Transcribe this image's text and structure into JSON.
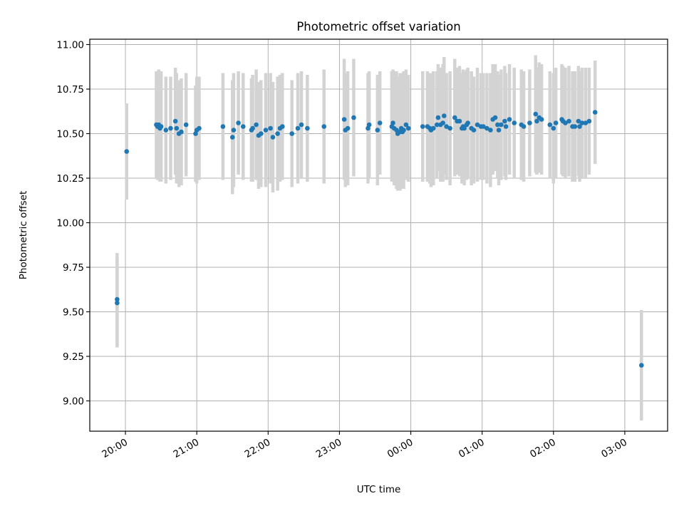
{
  "chart_data": {
    "type": "scatter",
    "title": "Photometric offset variation",
    "xlabel": "UTC time",
    "ylabel": "Photometric offset",
    "x_axis": {
      "kind": "time",
      "range": [
        "19:30",
        "03:36"
      ],
      "ticks": [
        "20:00",
        "21:00",
        "22:00",
        "23:00",
        "00:00",
        "01:00",
        "02:00",
        "03:00"
      ]
    },
    "y_axis": {
      "range": [
        8.83,
        11.03
      ],
      "ticks": [
        "9.00",
        "9.25",
        "9.50",
        "9.75",
        "10.00",
        "10.25",
        "10.50",
        "10.75",
        "11.00"
      ]
    },
    "grid": true,
    "legend": "none",
    "colors": {
      "marker": "#1f77b4",
      "errorbar": "#d3d3d3"
    },
    "series": [
      {
        "points": [
          {
            "t": "19:53",
            "y": 9.57,
            "err": 0.26
          },
          {
            "t": "19:53",
            "y": 9.55,
            "err": 0.25
          },
          {
            "t": "20:01",
            "y": 10.4,
            "err": 0.27
          },
          {
            "t": "20:26",
            "y": 10.55,
            "err": 0.3
          },
          {
            "t": "20:27",
            "y": 10.54,
            "err": 0.3
          },
          {
            "t": "20:28",
            "y": 10.55,
            "err": 0.31
          },
          {
            "t": "20:29",
            "y": 10.53,
            "err": 0.3
          },
          {
            "t": "20:30",
            "y": 10.54,
            "err": 0.31
          },
          {
            "t": "20:34",
            "y": 10.52,
            "err": 0.3
          },
          {
            "t": "20:38",
            "y": 10.53,
            "err": 0.29
          },
          {
            "t": "20:42",
            "y": 10.57,
            "err": 0.3
          },
          {
            "t": "20:43",
            "y": 10.53,
            "err": 0.31
          },
          {
            "t": "20:45",
            "y": 10.5,
            "err": 0.3
          },
          {
            "t": "20:47",
            "y": 10.51,
            "err": 0.3
          },
          {
            "t": "20:51",
            "y": 10.55,
            "err": 0.29
          },
          {
            "t": "20:59",
            "y": 10.5,
            "err": 0.27
          },
          {
            "t": "21:00",
            "y": 10.52,
            "err": 0.3
          },
          {
            "t": "21:02",
            "y": 10.53,
            "err": 0.29
          },
          {
            "t": "21:22",
            "y": 10.54,
            "err": 0.3
          },
          {
            "t": "21:30",
            "y": 10.48,
            "err": 0.32
          },
          {
            "t": "21:31",
            "y": 10.52,
            "err": 0.32
          },
          {
            "t": "21:35",
            "y": 10.56,
            "err": 0.29
          },
          {
            "t": "21:39",
            "y": 10.54,
            "err": 0.3
          },
          {
            "t": "21:46",
            "y": 10.52,
            "err": 0.29
          },
          {
            "t": "21:47",
            "y": 10.53,
            "err": 0.3
          },
          {
            "t": "21:50",
            "y": 10.55,
            "err": 0.31
          },
          {
            "t": "21:52",
            "y": 10.49,
            "err": 0.3
          },
          {
            "t": "21:54",
            "y": 10.5,
            "err": 0.3
          },
          {
            "t": "21:58",
            "y": 10.52,
            "err": 0.32
          },
          {
            "t": "22:02",
            "y": 10.53,
            "err": 0.31
          },
          {
            "t": "22:04",
            "y": 10.48,
            "err": 0.31
          },
          {
            "t": "22:08",
            "y": 10.5,
            "err": 0.32
          },
          {
            "t": "22:10",
            "y": 10.53,
            "err": 0.3
          },
          {
            "t": "22:12",
            "y": 10.54,
            "err": 0.3
          },
          {
            "t": "22:20",
            "y": 10.5,
            "err": 0.3
          },
          {
            "t": "22:25",
            "y": 10.53,
            "err": 0.31
          },
          {
            "t": "22:28",
            "y": 10.55,
            "err": 0.3
          },
          {
            "t": "22:33",
            "y": 10.53,
            "err": 0.3
          },
          {
            "t": "22:47",
            "y": 10.54,
            "err": 0.32
          },
          {
            "t": "23:04",
            "y": 10.58,
            "err": 0.34
          },
          {
            "t": "23:05",
            "y": 10.52,
            "err": 0.32
          },
          {
            "t": "23:07",
            "y": 10.53,
            "err": 0.32
          },
          {
            "t": "23:12",
            "y": 10.59,
            "err": 0.33
          },
          {
            "t": "23:24",
            "y": 10.53,
            "err": 0.31
          },
          {
            "t": "23:25",
            "y": 10.55,
            "err": 0.3
          },
          {
            "t": "23:32",
            "y": 10.52,
            "err": 0.31
          },
          {
            "t": "23:34",
            "y": 10.56,
            "err": 0.29
          },
          {
            "t": "23:44",
            "y": 10.54,
            "err": 0.31
          },
          {
            "t": "23:45",
            "y": 10.56,
            "err": 0.3
          },
          {
            "t": "23:46",
            "y": 10.53,
            "err": 0.32
          },
          {
            "t": "23:48",
            "y": 10.52,
            "err": 0.33
          },
          {
            "t": "23:49",
            "y": 10.5,
            "err": 0.32
          },
          {
            "t": "23:51",
            "y": 10.51,
            "err": 0.33
          },
          {
            "t": "23:52",
            "y": 10.53,
            "err": 0.31
          },
          {
            "t": "23:53",
            "y": 10.51,
            "err": 0.32
          },
          {
            "t": "23:54",
            "y": 10.52,
            "err": 0.33
          },
          {
            "t": "23:56",
            "y": 10.55,
            "err": 0.31
          },
          {
            "t": "23:58",
            "y": 10.53,
            "err": 0.3
          },
          {
            "t": "00:10",
            "y": 10.54,
            "err": 0.31
          },
          {
            "t": "00:14",
            "y": 10.54,
            "err": 0.31
          },
          {
            "t": "00:16",
            "y": 10.53,
            "err": 0.31
          },
          {
            "t": "00:17",
            "y": 10.52,
            "err": 0.32
          },
          {
            "t": "00:19",
            "y": 10.53,
            "err": 0.32
          },
          {
            "t": "00:22",
            "y": 10.55,
            "err": 0.3
          },
          {
            "t": "00:23",
            "y": 10.59,
            "err": 0.3
          },
          {
            "t": "00:25",
            "y": 10.55,
            "err": 0.32
          },
          {
            "t": "00:27",
            "y": 10.56,
            "err": 0.33
          },
          {
            "t": "00:28",
            "y": 10.6,
            "err": 0.33
          },
          {
            "t": "00:30",
            "y": 10.54,
            "err": 0.3
          },
          {
            "t": "00:33",
            "y": 10.53,
            "err": 0.32
          },
          {
            "t": "00:37",
            "y": 10.59,
            "err": 0.33
          },
          {
            "t": "00:39",
            "y": 10.57,
            "err": 0.3
          },
          {
            "t": "00:41",
            "y": 10.57,
            "err": 0.31
          },
          {
            "t": "00:43",
            "y": 10.53,
            "err": 0.31
          },
          {
            "t": "00:44",
            "y": 10.54,
            "err": 0.32
          },
          {
            "t": "00:45",
            "y": 10.53,
            "err": 0.32
          },
          {
            "t": "00:47",
            "y": 10.55,
            "err": 0.31
          },
          {
            "t": "00:48",
            "y": 10.56,
            "err": 0.31
          },
          {
            "t": "00:51",
            "y": 10.53,
            "err": 0.32
          },
          {
            "t": "00:53",
            "y": 10.52,
            "err": 0.3
          },
          {
            "t": "00:56",
            "y": 10.55,
            "err": 0.32
          },
          {
            "t": "00:59",
            "y": 10.54,
            "err": 0.3
          },
          {
            "t": "01:01",
            "y": 10.54,
            "err": 0.3
          },
          {
            "t": "01:04",
            "y": 10.53,
            "err": 0.31
          },
          {
            "t": "01:07",
            "y": 10.52,
            "err": 0.32
          },
          {
            "t": "01:09",
            "y": 10.58,
            "err": 0.31
          },
          {
            "t": "01:11",
            "y": 10.59,
            "err": 0.3
          },
          {
            "t": "01:13",
            "y": 10.55,
            "err": 0.3
          },
          {
            "t": "01:14",
            "y": 10.52,
            "err": 0.31
          },
          {
            "t": "01:16",
            "y": 10.55,
            "err": 0.31
          },
          {
            "t": "01:19",
            "y": 10.57,
            "err": 0.31
          },
          {
            "t": "01:20",
            "y": 10.54,
            "err": 0.3
          },
          {
            "t": "01:23",
            "y": 10.58,
            "err": 0.31
          },
          {
            "t": "01:27",
            "y": 10.56,
            "err": 0.31
          },
          {
            "t": "01:33",
            "y": 10.55,
            "err": 0.31
          },
          {
            "t": "01:35",
            "y": 10.54,
            "err": 0.31
          },
          {
            "t": "01:40",
            "y": 10.56,
            "err": 0.3
          },
          {
            "t": "01:45",
            "y": 10.61,
            "err": 0.33
          },
          {
            "t": "01:46",
            "y": 10.57,
            "err": 0.3
          },
          {
            "t": "01:48",
            "y": 10.59,
            "err": 0.31
          },
          {
            "t": "01:50",
            "y": 10.58,
            "err": 0.31
          },
          {
            "t": "01:57",
            "y": 10.55,
            "err": 0.3
          },
          {
            "t": "02:00",
            "y": 10.53,
            "err": 0.31
          },
          {
            "t": "02:02",
            "y": 10.56,
            "err": 0.31
          },
          {
            "t": "02:07",
            "y": 10.58,
            "err": 0.31
          },
          {
            "t": "02:08",
            "y": 10.57,
            "err": 0.31
          },
          {
            "t": "02:10",
            "y": 10.56,
            "err": 0.31
          },
          {
            "t": "02:13",
            "y": 10.57,
            "err": 0.31
          },
          {
            "t": "02:16",
            "y": 10.54,
            "err": 0.31
          },
          {
            "t": "02:18",
            "y": 10.54,
            "err": 0.31
          },
          {
            "t": "02:21",
            "y": 10.57,
            "err": 0.31
          },
          {
            "t": "02:22",
            "y": 10.54,
            "err": 0.31
          },
          {
            "t": "02:24",
            "y": 10.56,
            "err": 0.31
          },
          {
            "t": "02:27",
            "y": 10.56,
            "err": 0.31
          },
          {
            "t": "02:30",
            "y": 10.57,
            "err": 0.3
          },
          {
            "t": "02:35",
            "y": 10.62,
            "err": 0.29
          },
          {
            "t": "03:14",
            "y": 9.2,
            "err": 0.31
          }
        ]
      }
    ]
  }
}
